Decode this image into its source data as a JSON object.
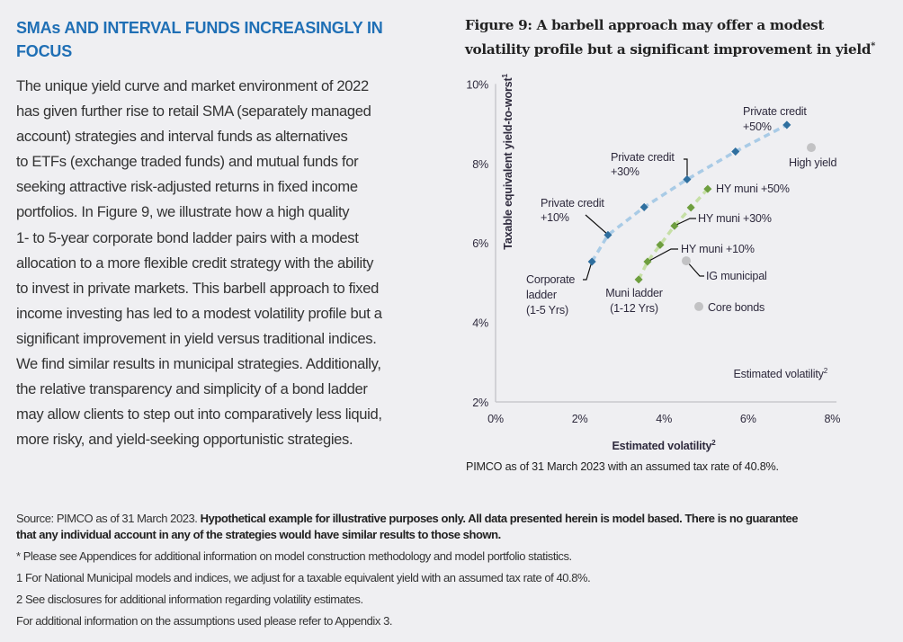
{
  "section": {
    "heading": "SMAs AND INTERVAL FUNDS INCREASINGLY IN FOCUS",
    "body_lines": [
      "The unique yield curve and market environment of 2022",
      "has given further rise to retail SMA (separately managed",
      "account) strategies and interval funds as alternatives",
      "to ETFs (exchange traded funds) and mutual funds for",
      "seeking attractive risk-adjusted returns in fixed income",
      "portfolios. In Figure 9, we illustrate how a high quality",
      "1- to 5-year corporate bond ladder pairs with a modest",
      "allocation to a more flexible credit strategy with the ability",
      "to invest in private markets. This barbell approach to fixed",
      "income investing has led to a modest volatility profile but a",
      "significant improvement in yield versus traditional indices.",
      "We find similar results in municipal strategies. Additionally,",
      "the relative transparency and simplicity of a bond ladder",
      "may allow clients to step out into comparatively less liquid,",
      "more risky, and yield-seeking opportunistic strategies."
    ]
  },
  "figure": {
    "title": "Figure 9: A barbell approach may offer a modest volatility profile but a significant improvement in yield",
    "title_mark": "*",
    "source": "PIMCO as of 31 March 2023 with an assumed tax rate of 40.8%."
  },
  "chart_data": {
    "type": "scatter",
    "xlabel": "Estimated volatility",
    "xlabel_sup": "2",
    "ylabel": "Taxable equivalent yield-to-worst",
    "ylabel_sup": "1",
    "inner_label": "Estimated volatility",
    "xlim": [
      0,
      8
    ],
    "ylim": [
      2,
      10
    ],
    "x_ticks": [
      "0%",
      "2%",
      "4%",
      "6%",
      "8%"
    ],
    "y_ticks": [
      "2%",
      "4%",
      "6%",
      "8%",
      "10%"
    ],
    "grid": false,
    "colors": {
      "private_credit": "#2f6f9f",
      "private_credit_line": "#a9cbe6",
      "muni": "#6e9e3f",
      "muni_line": "#c6dfa6",
      "index": "#c2c2c4",
      "axis": "#c8c8cc"
    },
    "series": [
      {
        "key": "private_credit",
        "points": [
          {
            "x": 2.29,
            "y": 5.53,
            "label": [
              "Corporate",
              "ladder",
              "(1-5 Yrs)"
            ]
          },
          {
            "x": 2.67,
            "y": 6.2,
            "label": [
              "Private credit",
              "+10%"
            ]
          },
          {
            "x": 3.53,
            "y": 6.9
          },
          {
            "x": 4.55,
            "y": 7.6,
            "label": [
              "Private credit",
              "+30%"
            ]
          },
          {
            "x": 5.7,
            "y": 8.3
          },
          {
            "x": 6.92,
            "y": 8.97,
            "label": [
              "Private credit",
              "+50%"
            ]
          }
        ]
      },
      {
        "key": "muni",
        "points": [
          {
            "x": 3.4,
            "y": 5.08,
            "label": [
              "Muni ladder",
              "(1-12 Yrs)"
            ]
          },
          {
            "x": 3.61,
            "y": 5.53,
            "label": [
              "HY muni +10%"
            ]
          },
          {
            "x": 3.91,
            "y": 5.95
          },
          {
            "x": 4.25,
            "y": 6.43,
            "label": [
              "HY muni +30%"
            ]
          },
          {
            "x": 4.64,
            "y": 6.89
          },
          {
            "x": 5.04,
            "y": 7.36,
            "label": [
              "HY muni +50%"
            ]
          }
        ]
      },
      {
        "key": "index",
        "points": [
          {
            "x": 7.5,
            "y": 8.4,
            "label": [
              "High yield"
            ]
          },
          {
            "x": 4.53,
            "y": 5.55,
            "label": [
              "IG municipal"
            ]
          },
          {
            "x": 4.83,
            "y": 4.4,
            "label": [
              "Core bonds"
            ]
          }
        ]
      }
    ]
  },
  "notes": {
    "source_prefix": "Source: PIMCO as of 31 March 2023. ",
    "source_bold_1": "Hypothetical example for illustrative purposes only. All data presented herein is model based. There is no guarantee",
    "source_bold_2": "that any individual account in any of the strategies would have similar results to those shown.",
    "lines": [
      "* Please see Appendices for additional information on model construction methodology and model portfolio statistics.",
      "1 For National Municipal models and indices, we adjust for a taxable equivalent yield with an assumed tax rate of 40.8%.",
      "2 See disclosures for additional information regarding volatility estimates.",
      "For additional information on the assumptions used please refer to Appendix 3."
    ]
  }
}
